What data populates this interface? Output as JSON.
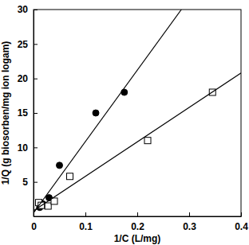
{
  "chart_data": {
    "type": "scatter",
    "x_label": "1/C (L/mg)",
    "y_label": "1/Q (g biosorben/mg ion logam)",
    "xlim": [
      0,
      0.4
    ],
    "xticks": [
      0,
      0.1,
      0.2,
      0.3,
      0.4
    ],
    "ylim": [
      0,
      30
    ],
    "yticks": [
      5,
      10,
      15,
      20,
      25,
      30
    ],
    "grid": false,
    "series": [
      {
        "type": "scatter",
        "marker": "circle",
        "color": "#000000",
        "x": [
          0.012,
          0.018,
          0.03,
          0.05,
          0.12,
          0.175
        ],
        "values": [
          1.3,
          1.8,
          2.7,
          7.4,
          15,
          18
        ]
      },
      {
        "type": "scatter",
        "marker": "square-open",
        "color": "#000000",
        "x": [
          0.01,
          0.015,
          0.028,
          0.04,
          0.07,
          0.22,
          0.345
        ],
        "values": [
          2,
          1.6,
          1.5,
          2.2,
          5.8,
          11,
          18
        ]
      },
      {
        "type": "line",
        "line_style": "solid",
        "color": "#000000",
        "x": [
          0,
          0.285
        ],
        "values": [
          0.5,
          30
        ]
      },
      {
        "type": "line",
        "line_style": "solid",
        "color": "#000000",
        "x": [
          0,
          0.4
        ],
        "values": [
          0.8,
          20.8
        ]
      }
    ]
  }
}
